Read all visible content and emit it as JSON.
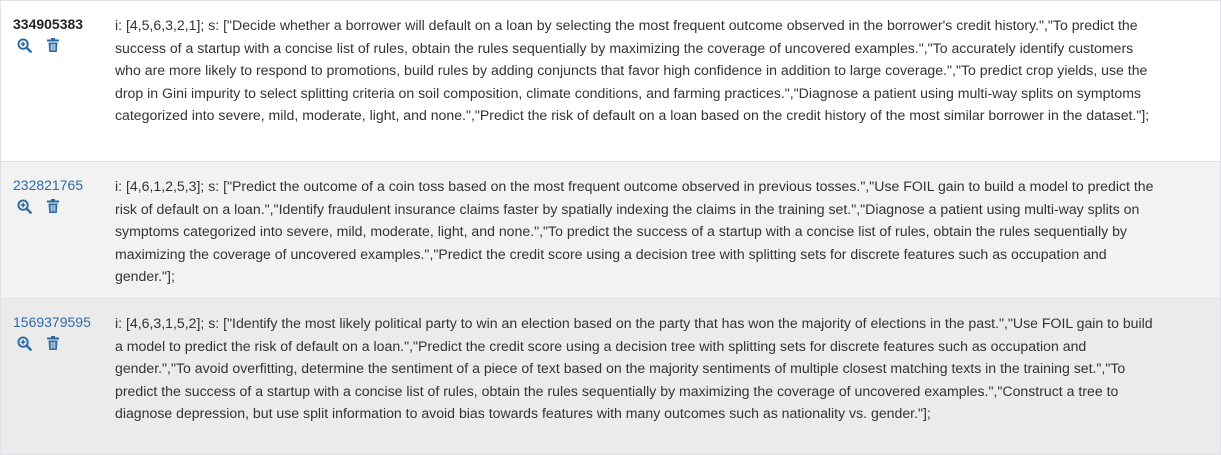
{
  "rows": [
    {
      "id": "334905383",
      "text": "i: [4,5,6,3,2,1]; s: [\"Decide whether a borrower will default on a loan by selecting the most frequent outcome observed in the borrower's credit history.\",\"To predict the success of a startup with a concise list of rules, obtain the rules sequentially by maximizing the coverage of uncovered examples.\",\"To accurately identify customers who are more likely to respond to promotions, build rules by adding conjuncts that favor high confidence in addition to large coverage.\",\"To predict crop yields, use the drop in Gini impurity to select splitting criteria on soil composition, climate conditions, and farming practices.\",\"Diagnose a patient using multi-way splits on symptoms categorized into severe, mild, moderate, light, and none.\",\"Predict the risk of default on a loan based on the credit history of the most similar borrower in the dataset.\"];"
    },
    {
      "id": "232821765",
      "text": "i: [4,6,1,2,5,3]; s: [\"Predict the outcome of a coin toss based on the most frequent outcome observed in previous tosses.\",\"Use FOIL gain to build a model to predict the risk of default on a loan.\",\"Identify fraudulent insurance claims faster by spatially indexing the claims in the training set.\",\"Diagnose a patient using multi-way splits on symptoms categorized into severe, mild, moderate, light, and none.\",\"To predict the success of a startup with a concise list of rules, obtain the rules sequentially by maximizing the coverage of uncovered examples.\",\"Predict the credit score using a decision tree with splitting sets for discrete features such as occupation and gender.\"];"
    },
    {
      "id": "1569379595",
      "text": "i: [4,6,3,1,5,2]; s: [\"Identify the most likely political party to win an election based on the party that has won the majority of elections in the past.\",\"Use FOIL gain to build a model to predict the risk of default on a loan.\",\"Predict the credit score using a decision tree with splitting sets for discrete features such as occupation and gender.\",\"To avoid overfitting, determine the sentiment of a piece of text based on the majority sentiments of multiple closest matching texts in the training set.\",\"To predict the success of a startup with a concise list of rules, obtain the rules sequentially by maximizing the coverage of uncovered examples.\",\"Construct a tree to diagnose depression, but use split information to avoid bias towards features with many outcomes such as nationality vs. gender.\"];"
    }
  ],
  "icons": {
    "view": "search-plus-icon",
    "delete": "trash-icon"
  },
  "colors": {
    "link": "#2c6aa6",
    "icon": "#2c6aa6",
    "row_alt": "#f2f2f2",
    "border": "#dee2e6"
  }
}
